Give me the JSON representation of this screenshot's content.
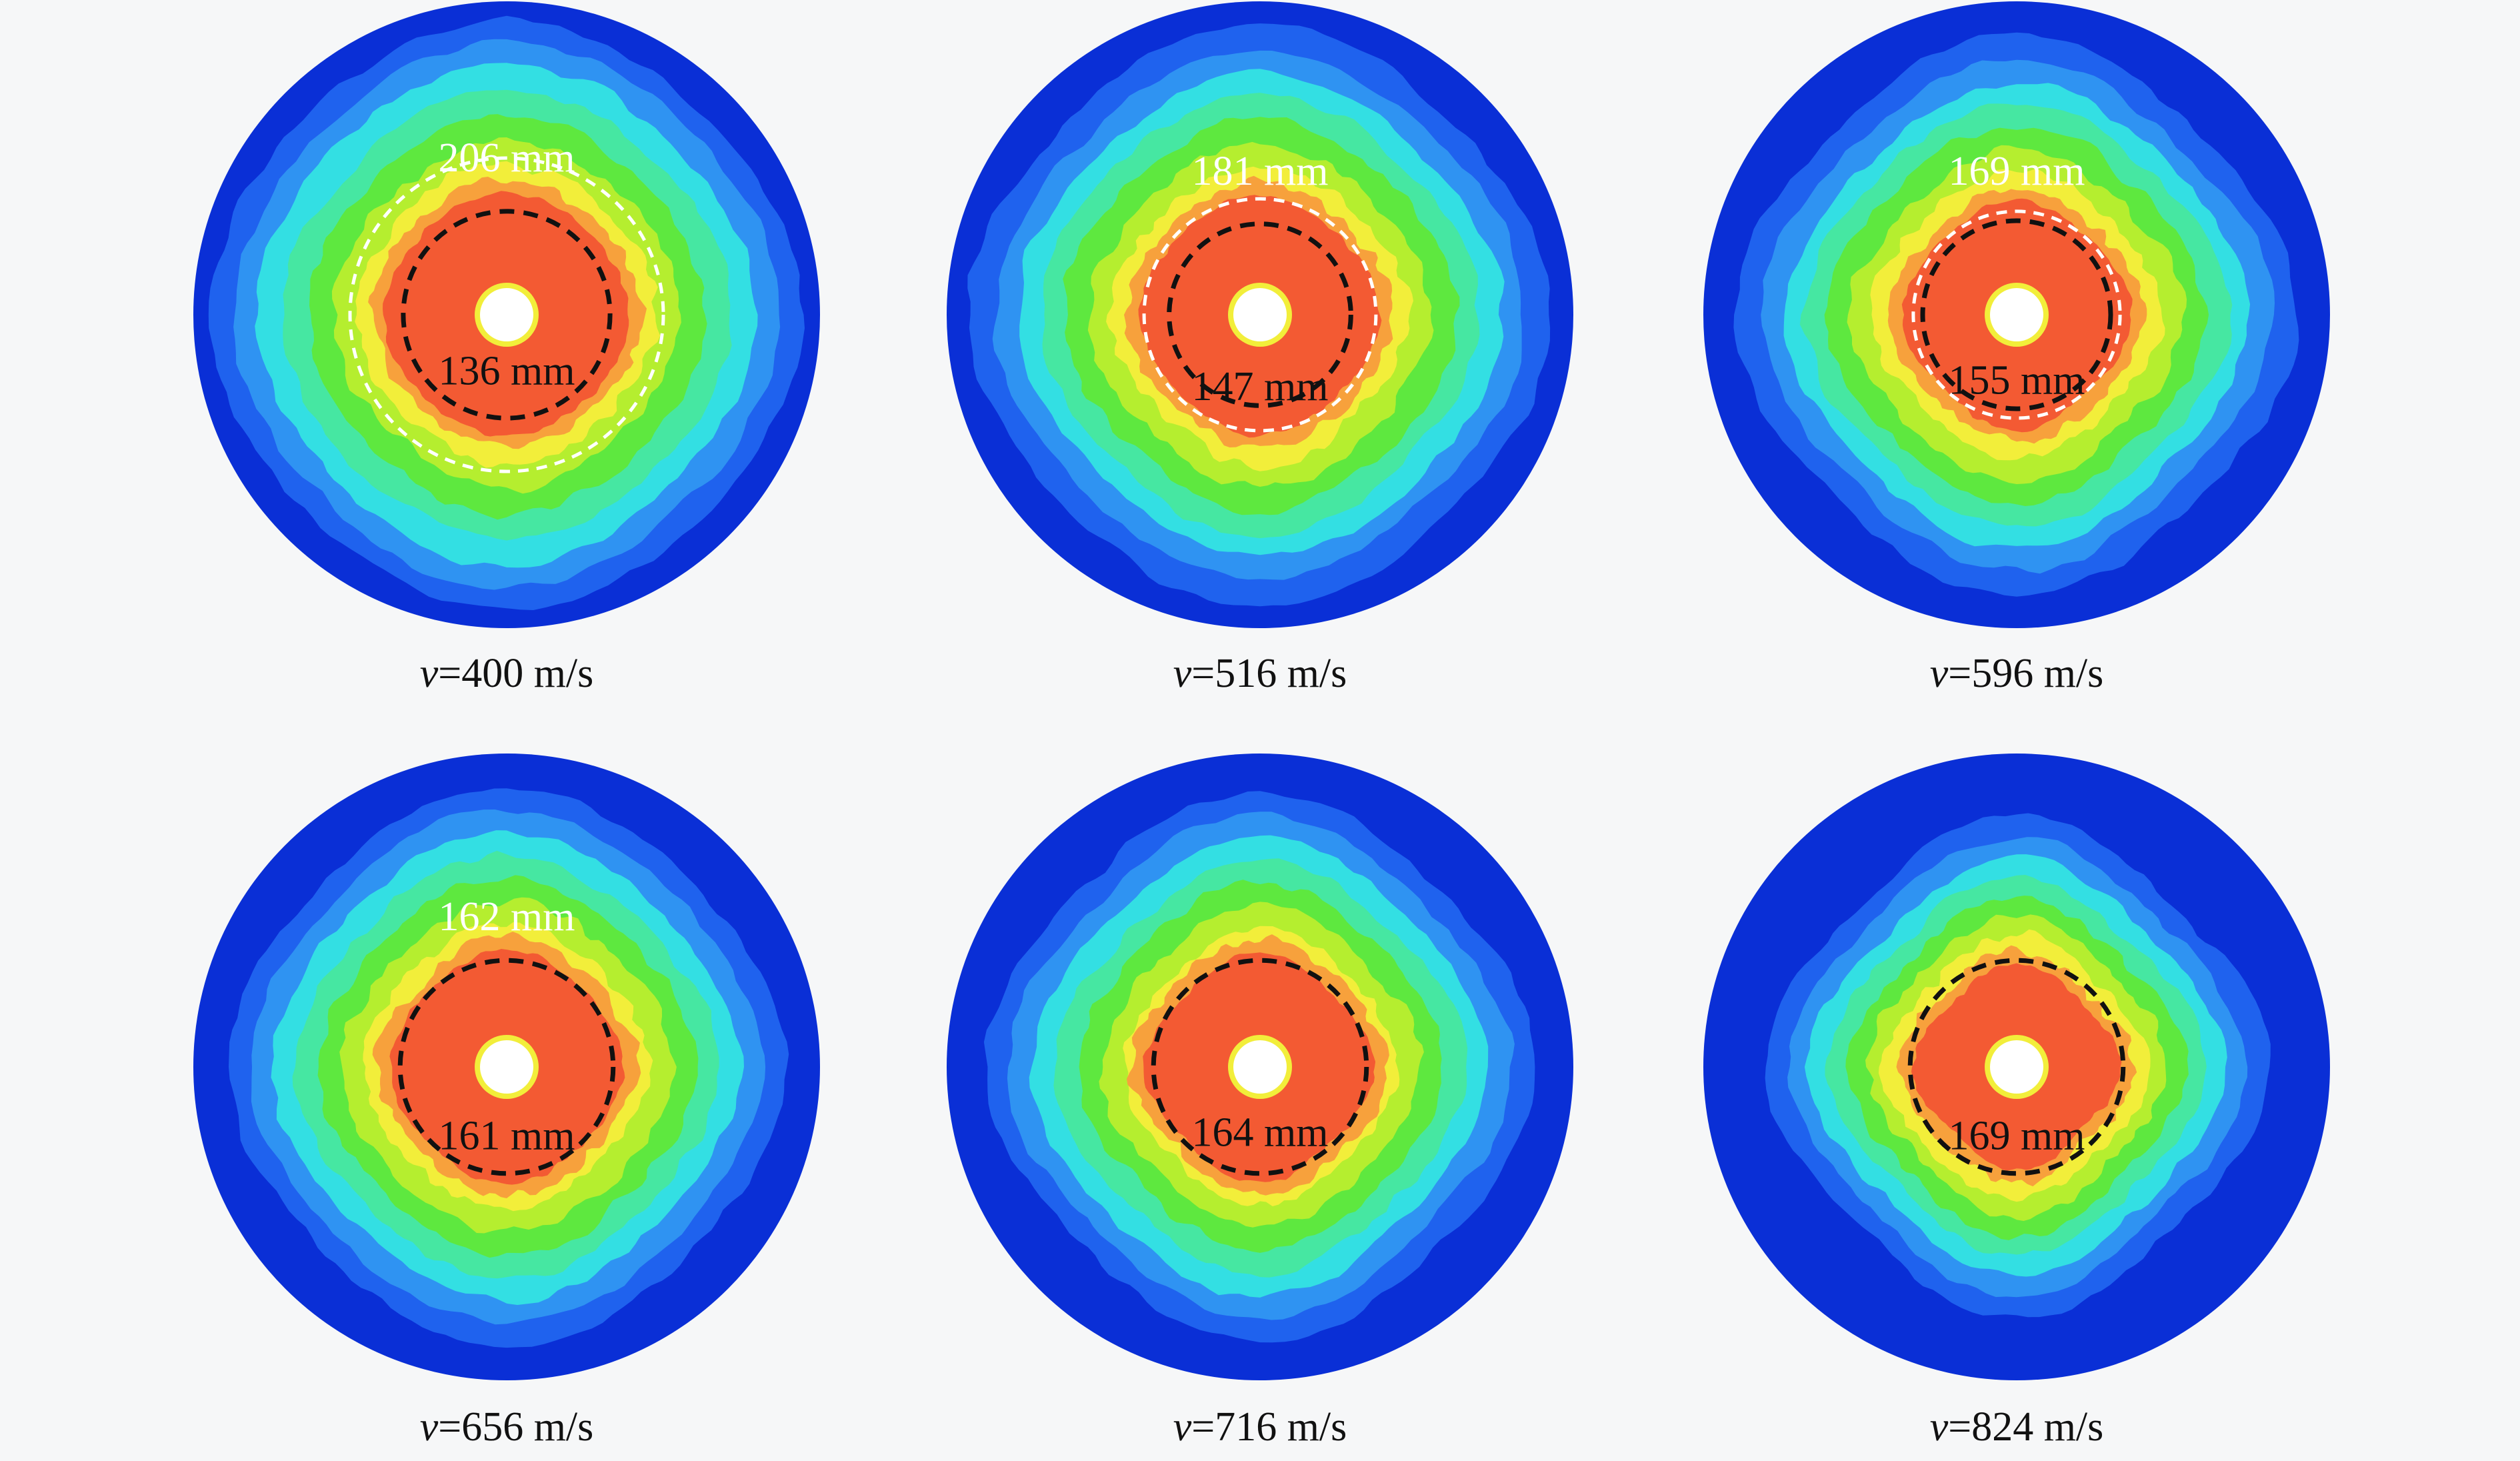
{
  "colors": {
    "background": "#f6f7f8",
    "outer_blue": "#0a2fd6",
    "mid_blue": "#1f62ee",
    "light_blue": "#2f93f2",
    "cyan": "#33dfe3",
    "aqua_green": "#46e7a2",
    "green": "#5ee83f",
    "yellow_green": "#b5ee2f",
    "yellow": "#f2ee3a",
    "orange": "#f7a13c",
    "red_orange": "#f35a33",
    "hole": "#ffffff",
    "dash_white": "#ffffff",
    "dash_black": "#111111"
  },
  "panels": [
    {
      "caption_var": "v",
      "caption_rest": "=400 m/s",
      "rings": [
        {
          "label": "206 mm",
          "style": "white-dashed",
          "label_position": "top"
        },
        {
          "label": "136 mm",
          "style": "black-dashed",
          "label_position": "bottom"
        }
      ]
    },
    {
      "caption_var": "v",
      "caption_rest": "=516 m/s",
      "rings": [
        {
          "label": "181 mm",
          "style": "white-dashed",
          "label_position": "top"
        },
        {
          "label": "147 mm",
          "style": "black-dashed",
          "label_position": "bottom"
        }
      ]
    },
    {
      "caption_var": "v",
      "caption_rest": "=596 m/s",
      "rings": [
        {
          "label": "169 mm",
          "style": "white-dashed",
          "label_position": "top"
        },
        {
          "label": "155 mm",
          "style": "black-dashed",
          "label_position": "bottom"
        }
      ]
    },
    {
      "caption_var": "v",
      "caption_rest": "=656 m/s",
      "rings": [
        {
          "label": "162 mm",
          "style": "white-dashed",
          "label_position": "top"
        },
        {
          "label": "161 mm",
          "style": "black-dashed",
          "label_position": "bottom"
        }
      ]
    },
    {
      "caption_var": "v",
      "caption_rest": "=716 m/s",
      "rings": [
        {
          "label": "164 mm",
          "style": "black-dashed",
          "label_position": "bottom"
        }
      ]
    },
    {
      "caption_var": "v",
      "caption_rest": "=824 m/s",
      "rings": [
        {
          "label": "169 mm",
          "style": "black-dashed",
          "label_position": "bottom"
        }
      ]
    }
  ]
}
